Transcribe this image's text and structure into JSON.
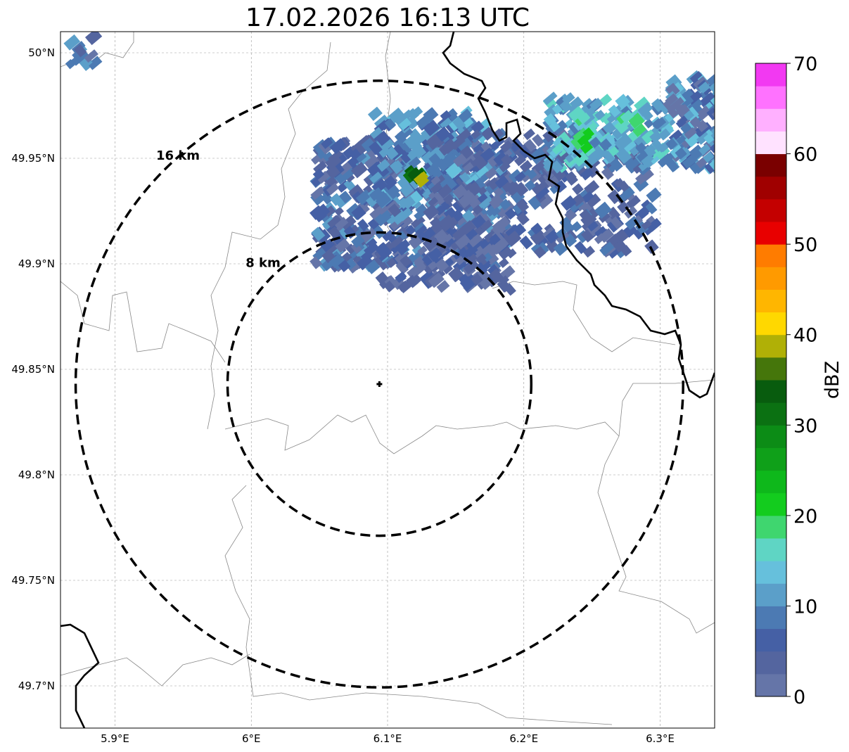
{
  "title": "17.02.2026 16:13 UTC",
  "map": {
    "lon_range": [
      5.86,
      6.34
    ],
    "lat_range": [
      49.68,
      50.01
    ],
    "x_ticks": [
      {
        "lon": 5.9,
        "label": "5.9°E"
      },
      {
        "lon": 6.0,
        "label": "6°E"
      },
      {
        "lon": 6.1,
        "label": "6.1°E"
      },
      {
        "lon": 6.2,
        "label": "6.2°E"
      },
      {
        "lon": 6.3,
        "label": "6.3°E"
      }
    ],
    "y_ticks": [
      {
        "lat": 50.0,
        "label": "50°N"
      },
      {
        "lat": 49.95,
        "label": "49.95°N"
      },
      {
        "lat": 49.9,
        "label": "49.9°N"
      },
      {
        "lat": 49.85,
        "label": "49.85°N"
      },
      {
        "lat": 49.8,
        "label": "49.8°N"
      },
      {
        "lat": 49.75,
        "label": "49.75°N"
      },
      {
        "lat": 49.7,
        "label": "49.7°N"
      }
    ],
    "radar_site": {
      "lon": 6.094,
      "lat": 49.843
    },
    "range_rings": [
      {
        "radius_km": 8,
        "label": "8 km"
      },
      {
        "radius_km": 16,
        "label": "16 km"
      }
    ],
    "gridlines": true
  },
  "colorbar": {
    "label": "dBZ",
    "min": 0,
    "max": 70,
    "ticks": [
      0,
      10,
      20,
      30,
      40,
      50,
      60,
      70
    ],
    "tick_labels": [
      "0",
      "10",
      "20",
      "30",
      "40",
      "50",
      "60",
      "70"
    ],
    "colors": [
      "#6575a8",
      "#54659f",
      "#4560a5",
      "#4c7ab3",
      "#5b9fc9",
      "#66c0dc",
      "#5fd5c4",
      "#3fd66f",
      "#13cc1e",
      "#0eb81b",
      "#0fa019",
      "#0c8c16",
      "#0b7112",
      "#085c0e",
      "#45760b",
      "#b0b006",
      "#ffd800",
      "#ffb600",
      "#ff9a00",
      "#ff7c00",
      "#e80000",
      "#c40000",
      "#a00000",
      "#7a0000",
      "#ffe2ff",
      "#ffb0ff",
      "#ff72ff",
      "#f239f2"
    ]
  }
}
